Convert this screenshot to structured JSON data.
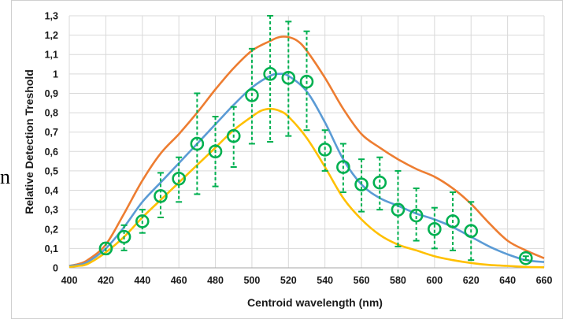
{
  "chart_data": {
    "type": "line",
    "title": "",
    "xlabel": "Centroid wavelength (nm)",
    "ylabel": "Relative Detection Treshold",
    "xlim": [
      400,
      660
    ],
    "ylim": [
      0,
      1.3
    ],
    "x_ticks": [
      400,
      420,
      440,
      460,
      480,
      500,
      520,
      540,
      560,
      580,
      600,
      620,
      640,
      660
    ],
    "x_tick_labels": [
      "400",
      "420",
      "440",
      "460",
      "480",
      "500",
      "520",
      "540",
      "560",
      "580",
      "600",
      "620",
      "640",
      "660"
    ],
    "y_ticks": [
      0,
      0.1,
      0.2,
      0.3,
      0.4,
      0.5,
      0.6,
      0.7,
      0.8,
      0.9,
      1,
      1.1,
      1.2,
      1.3
    ],
    "y_tick_labels": [
      "0",
      "0,1",
      "0,2",
      "0,3",
      "0,4",
      "0,5",
      "0,6",
      "0,7",
      "0,8",
      "0,9",
      "1",
      "1,1",
      "1,2",
      "1,3"
    ],
    "grid": true,
    "legend": "none",
    "measured": {
      "color": "#00b050",
      "points": [
        {
          "x": 420,
          "y": 0.1,
          "lo": 0.07,
          "hi": 0.13
        },
        {
          "x": 430,
          "y": 0.16,
          "lo": 0.09,
          "hi": 0.22
        },
        {
          "x": 440,
          "y": 0.24,
          "lo": 0.18,
          "hi": 0.3
        },
        {
          "x": 450,
          "y": 0.37,
          "lo": 0.26,
          "hi": 0.49
        },
        {
          "x": 460,
          "y": 0.46,
          "lo": 0.34,
          "hi": 0.57
        },
        {
          "x": 470,
          "y": 0.64,
          "lo": 0.38,
          "hi": 0.9
        },
        {
          "x": 480,
          "y": 0.6,
          "lo": 0.42,
          "hi": 0.78
        },
        {
          "x": 490,
          "y": 0.68,
          "lo": 0.52,
          "hi": 0.83
        },
        {
          "x": 500,
          "y": 0.89,
          "lo": 0.64,
          "hi": 1.13
        },
        {
          "x": 510,
          "y": 1.0,
          "lo": 0.65,
          "hi": 1.3
        },
        {
          "x": 520,
          "y": 0.98,
          "lo": 0.68,
          "hi": 1.27
        },
        {
          "x": 530,
          "y": 0.96,
          "lo": 0.71,
          "hi": 1.22
        },
        {
          "x": 540,
          "y": 0.61,
          "lo": 0.5,
          "hi": 0.71
        },
        {
          "x": 550,
          "y": 0.52,
          "lo": 0.39,
          "hi": 0.64
        },
        {
          "x": 560,
          "y": 0.43,
          "lo": 0.29,
          "hi": 0.56
        },
        {
          "x": 570,
          "y": 0.44,
          "lo": 0.3,
          "hi": 0.57
        },
        {
          "x": 580,
          "y": 0.3,
          "lo": 0.11,
          "hi": 0.5
        },
        {
          "x": 590,
          "y": 0.27,
          "lo": 0.14,
          "hi": 0.41
        },
        {
          "x": 600,
          "y": 0.2,
          "lo": 0.1,
          "hi": 0.31
        },
        {
          "x": 610,
          "y": 0.24,
          "lo": 0.09,
          "hi": 0.39
        },
        {
          "x": 620,
          "y": 0.19,
          "lo": 0.04,
          "hi": 0.34
        },
        {
          "x": 650,
          "y": 0.05,
          "lo": 0.04,
          "hi": 0.06
        }
      ]
    },
    "series": [
      {
        "color": "#ed7d31",
        "x": [
          400,
          405,
          410,
          420,
          430,
          440,
          450,
          460,
          470,
          480,
          490,
          500,
          510,
          515,
          520,
          525,
          530,
          540,
          550,
          560,
          570,
          580,
          590,
          600,
          610,
          620,
          630,
          640,
          650,
          660
        ],
        "y": [
          0.01,
          0.02,
          0.04,
          0.12,
          0.28,
          0.45,
          0.59,
          0.69,
          0.8,
          0.92,
          1.03,
          1.12,
          1.17,
          1.19,
          1.19,
          1.17,
          1.12,
          0.98,
          0.82,
          0.69,
          0.62,
          0.56,
          0.51,
          0.47,
          0.41,
          0.33,
          0.23,
          0.14,
          0.09,
          0.05
        ]
      },
      {
        "color": "#5b9bd5",
        "x": [
          400,
          405,
          410,
          420,
          430,
          440,
          450,
          460,
          470,
          480,
          490,
          500,
          510,
          515,
          520,
          530,
          540,
          550,
          560,
          570,
          580,
          590,
          600,
          610,
          620,
          630,
          640,
          650,
          660
        ],
        "y": [
          0.01,
          0.015,
          0.03,
          0.1,
          0.21,
          0.34,
          0.44,
          0.54,
          0.64,
          0.74,
          0.84,
          0.93,
          0.99,
          1.0,
          0.99,
          0.91,
          0.75,
          0.56,
          0.43,
          0.36,
          0.32,
          0.28,
          0.25,
          0.21,
          0.16,
          0.11,
          0.07,
          0.04,
          0.03
        ]
      },
      {
        "color": "#ffc000",
        "x": [
          400,
          405,
          410,
          420,
          430,
          440,
          450,
          460,
          470,
          480,
          490,
          500,
          505,
          510,
          515,
          520,
          530,
          540,
          550,
          560,
          570,
          580,
          590,
          600,
          610,
          620,
          630,
          640,
          650,
          660
        ],
        "y": [
          0.005,
          0.01,
          0.02,
          0.08,
          0.16,
          0.26,
          0.35,
          0.44,
          0.53,
          0.62,
          0.71,
          0.78,
          0.81,
          0.82,
          0.81,
          0.78,
          0.67,
          0.52,
          0.36,
          0.25,
          0.17,
          0.12,
          0.09,
          0.06,
          0.04,
          0.025,
          0.015,
          0.01,
          0.005,
          0.003
        ]
      }
    ]
  }
}
